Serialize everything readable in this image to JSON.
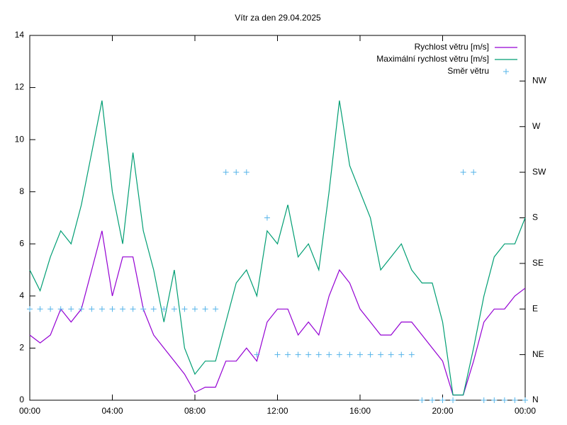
{
  "chart_data": {
    "type": "line",
    "title": "Vítr za den 29.04.2025",
    "x": [
      0,
      0.5,
      1,
      1.5,
      2,
      2.5,
      3,
      3.5,
      4,
      4.5,
      5,
      5.5,
      6,
      6.5,
      7,
      7.5,
      8,
      8.5,
      9,
      9.5,
      10,
      10.5,
      11,
      11.5,
      12,
      12.5,
      13,
      13.5,
      14,
      14.5,
      15,
      15.5,
      16,
      16.5,
      17,
      17.5,
      18,
      18.5,
      19,
      19.5,
      20,
      20.5,
      21,
      21.5,
      22,
      22.5,
      23,
      23.5,
      24
    ],
    "series": [
      {
        "name": "Rychlost větru [m/s]",
        "color": "#9400d3",
        "style": "line",
        "values": [
          2.5,
          2.2,
          2.5,
          3.5,
          3,
          3.5,
          5,
          6.5,
          4,
          5.5,
          5.5,
          3.5,
          2.5,
          2,
          1.5,
          1,
          0.3,
          0.5,
          0.5,
          1.5,
          1.5,
          2,
          1.5,
          3,
          3.5,
          3.5,
          2.5,
          3,
          2.5,
          4,
          5,
          4.5,
          3.5,
          3,
          2.5,
          2.5,
          3,
          3,
          2.5,
          2,
          1.5,
          0.2,
          0.2,
          1.5,
          3,
          3.5,
          3.5,
          4,
          4.3
        ]
      },
      {
        "name": "Maximální rychlost větru [m/s]",
        "color": "#009e73",
        "style": "line",
        "values": [
          5,
          4.2,
          5.5,
          6.5,
          6,
          7.5,
          9.5,
          11.5,
          8,
          6,
          9.5,
          6.5,
          5,
          3,
          5,
          2,
          1,
          1.5,
          1.5,
          3,
          4.5,
          5,
          4,
          6.5,
          6,
          7.5,
          5.5,
          6,
          5,
          8,
          11.5,
          9,
          8,
          7,
          5,
          5.5,
          6,
          5,
          4.5,
          4.5,
          3,
          0.2,
          0.2,
          2,
          4,
          5.5,
          6,
          6,
          7
        ]
      },
      {
        "name": "Směr větru",
        "color": "#56b4e9",
        "style": "points",
        "axis": "y2",
        "values": [
          2,
          2,
          2,
          2,
          2,
          2,
          2,
          2,
          2,
          2,
          2,
          2,
          2,
          2,
          2,
          2,
          2,
          2,
          2,
          5,
          5,
          5,
          1,
          4,
          1,
          1,
          1,
          1,
          1,
          1,
          1,
          1,
          1,
          1,
          1,
          1,
          1,
          1,
          0,
          0,
          0,
          0,
          5,
          5,
          0,
          0,
          0,
          0,
          0
        ]
      }
    ],
    "xlim": [
      0,
      24
    ],
    "xticks": [
      {
        "value": 0,
        "label": "00:00"
      },
      {
        "value": 4,
        "label": "04:00"
      },
      {
        "value": 8,
        "label": "08:00"
      },
      {
        "value": 12,
        "label": "12:00"
      },
      {
        "value": 16,
        "label": "16:00"
      },
      {
        "value": 20,
        "label": "20:00"
      },
      {
        "value": 24,
        "label": "00:00"
      }
    ],
    "ylim": [
      0,
      14
    ],
    "yticks": [
      0,
      2,
      4,
      6,
      8,
      10,
      12,
      14
    ],
    "y2lim": [
      0,
      8
    ],
    "y2ticks": [
      {
        "value": 0,
        "label": "N"
      },
      {
        "value": 1,
        "label": "NE"
      },
      {
        "value": 2,
        "label": "E"
      },
      {
        "value": 3,
        "label": "SE"
      },
      {
        "value": 4,
        "label": "S"
      },
      {
        "value": 5,
        "label": "SW"
      },
      {
        "value": 6,
        "label": "W"
      },
      {
        "value": 7,
        "label": "NW"
      }
    ],
    "legend": "top-right"
  }
}
